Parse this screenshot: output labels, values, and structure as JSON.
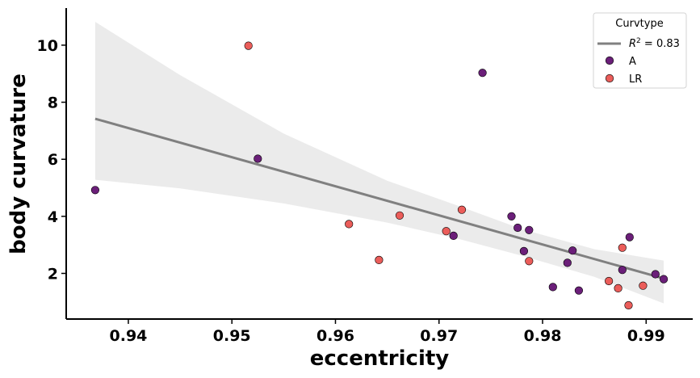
{
  "chart_data": {
    "type": "scatter",
    "xlabel": "eccentricity",
    "ylabel": "body curvature",
    "xlim": [
      0.934,
      0.9945
    ],
    "ylim": [
      0.4,
      11.3
    ],
    "xticks": [
      0.94,
      0.95,
      0.96,
      0.97,
      0.98,
      0.99
    ],
    "xtick_labels": [
      "0.94",
      "0.95",
      "0.96",
      "0.97",
      "0.98",
      "0.99"
    ],
    "yticks": [
      2,
      4,
      6,
      8,
      10
    ],
    "ytick_labels": [
      "2",
      "4",
      "6",
      "8",
      "10"
    ],
    "legend": {
      "title": "Curvtype",
      "position": "top-right",
      "fit_label_prefix": "R",
      "fit_label_sup": "2",
      "fit_label_suffix": " = 0.83"
    },
    "regression": {
      "x": [
        0.9368,
        0.9917
      ],
      "y": [
        7.42,
        1.82
      ],
      "color": "#808080",
      "ci_upper": [
        [
          0.9368,
          10.82
        ],
        [
          0.945,
          8.95
        ],
        [
          0.955,
          6.9
        ],
        [
          0.965,
          5.25
        ],
        [
          0.972,
          4.35
        ],
        [
          0.978,
          3.55
        ],
        [
          0.985,
          2.85
        ],
        [
          0.9917,
          2.45
        ]
      ],
      "ci_lower": [
        [
          0.9368,
          5.28
        ],
        [
          0.945,
          4.98
        ],
        [
          0.955,
          4.45
        ],
        [
          0.965,
          3.78
        ],
        [
          0.972,
          3.2
        ],
        [
          0.978,
          2.62
        ],
        [
          0.985,
          1.88
        ],
        [
          0.9917,
          0.95
        ]
      ],
      "ci_color": "#ebebeb"
    },
    "series": [
      {
        "name": "A",
        "color": "#6b1f79",
        "points": [
          [
            0.9368,
            4.92
          ],
          [
            0.9525,
            6.02
          ],
          [
            0.9714,
            3.32
          ],
          [
            0.9742,
            9.03
          ],
          [
            0.977,
            4.0
          ],
          [
            0.9776,
            3.6
          ],
          [
            0.9782,
            2.78
          ],
          [
            0.9787,
            3.52
          ],
          [
            0.981,
            1.52
          ],
          [
            0.9824,
            2.37
          ],
          [
            0.9829,
            2.8
          ],
          [
            0.9835,
            1.4
          ],
          [
            0.9877,
            2.12
          ],
          [
            0.9884,
            3.27
          ],
          [
            0.9909,
            1.97
          ],
          [
            0.9917,
            1.8
          ]
        ]
      },
      {
        "name": "LR",
        "color": "#eb5d5a",
        "points": [
          [
            0.9516,
            9.98
          ],
          [
            0.9613,
            3.73
          ],
          [
            0.9642,
            2.47
          ],
          [
            0.9662,
            4.03
          ],
          [
            0.9707,
            3.48
          ],
          [
            0.9722,
            4.23
          ],
          [
            0.9787,
            2.43
          ],
          [
            0.9864,
            1.73
          ],
          [
            0.9873,
            1.48
          ],
          [
            0.9877,
            2.9
          ],
          [
            0.9883,
            0.88
          ],
          [
            0.9897,
            1.57
          ]
        ]
      }
    ]
  }
}
